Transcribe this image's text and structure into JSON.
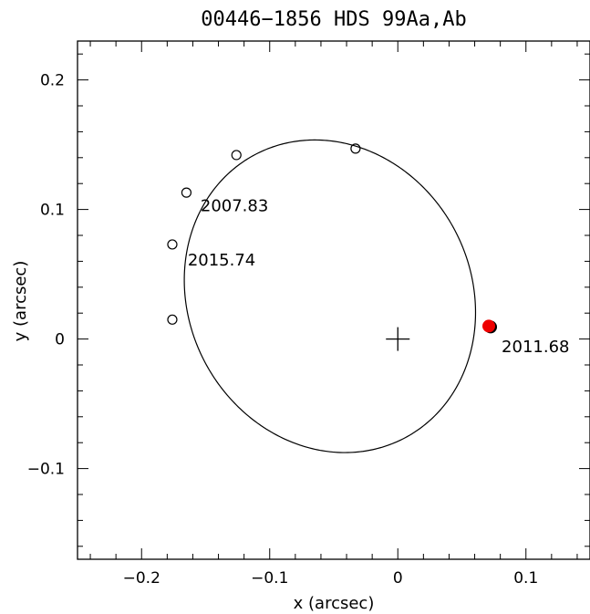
{
  "chart_data": {
    "type": "scatter",
    "title": "00446−1856   HDS  99Aa,Ab",
    "xlabel": "x  (arcsec)",
    "ylabel": "y  (arcsec)",
    "xlim": [
      -0.25,
      0.15
    ],
    "ylim": [
      -0.17,
      0.23
    ],
    "x_ticks": [
      {
        "value": -0.2,
        "label": "−0.2"
      },
      {
        "value": -0.1,
        "label": "−0.1"
      },
      {
        "value": 0.0,
        "label": "0"
      },
      {
        "value": 0.1,
        "label": "0.1"
      }
    ],
    "y_ticks": [
      {
        "value": -0.1,
        "label": "−0.1"
      },
      {
        "value": 0.0,
        "label": "0"
      },
      {
        "value": 0.1,
        "label": "0.1"
      },
      {
        "value": 0.2,
        "label": "0.2"
      }
    ],
    "minor_tick_step": 0.02,
    "grid": false,
    "orbit": {
      "center_x": -0.053,
      "center_y": 0.033,
      "semi_axis_a": 0.124,
      "semi_axis_b": 0.11,
      "rotation_deg": 120,
      "color": "#000000"
    },
    "primary_marker": {
      "x": 0.0,
      "y": 0.0,
      "symbol": "plus"
    },
    "observations": [
      {
        "x": -0.033,
        "y": 0.147
      },
      {
        "x": -0.126,
        "y": 0.142
      },
      {
        "x": -0.165,
        "y": 0.113
      },
      {
        "x": -0.176,
        "y": 0.073
      },
      {
        "x": -0.176,
        "y": 0.015
      }
    ],
    "highlight_point": {
      "x": 0.071,
      "y": 0.01,
      "color": "#ee0000"
    },
    "annotations": [
      {
        "text": "2007.83",
        "x": -0.154,
        "y": 0.103
      },
      {
        "text": "2015.74",
        "x": -0.164,
        "y": 0.061
      },
      {
        "text": "2011.68",
        "x": 0.081,
        "y": -0.006
      }
    ]
  }
}
